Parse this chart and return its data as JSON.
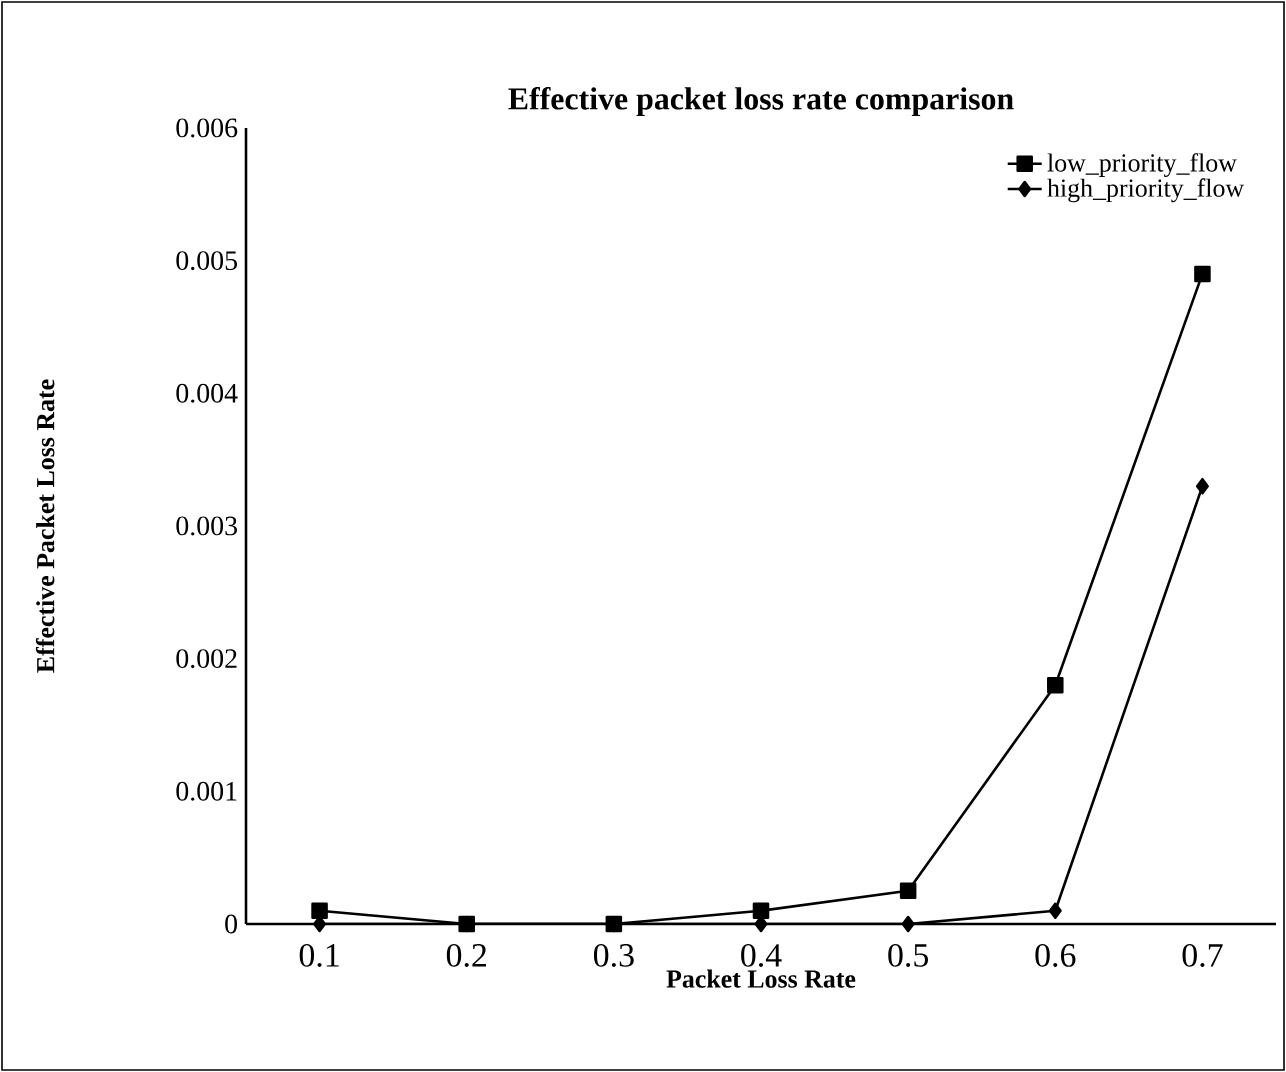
{
  "chart_data": {
    "type": "line",
    "title": "Effective packet loss rate comparison",
    "xlabel": "Packet Loss Rate",
    "ylabel": "Effective Packet Loss Rate",
    "categories": [
      "0.1",
      "0.2",
      "0.3",
      "0.4",
      "0.5",
      "0.6",
      "0.7"
    ],
    "series": [
      {
        "name": "low_priority_flow",
        "color": "#000000",
        "marker": "square",
        "values": [
          0.0001,
          0.0,
          0.0,
          0.0001,
          0.00025,
          0.0018,
          0.0049
        ]
      },
      {
        "name": "high_priority_flow",
        "color": "#000000",
        "marker": "diamond",
        "values": [
          0.0,
          0.0,
          0.0,
          0.0,
          0.0,
          0.0001,
          0.0033
        ]
      }
    ],
    "ylim": [
      0,
      0.006
    ],
    "yticks": [
      0,
      0.001,
      0.002,
      0.003,
      0.004,
      0.005,
      0.006
    ],
    "grid": false,
    "legend": "top right",
    "line_style": "solid"
  }
}
